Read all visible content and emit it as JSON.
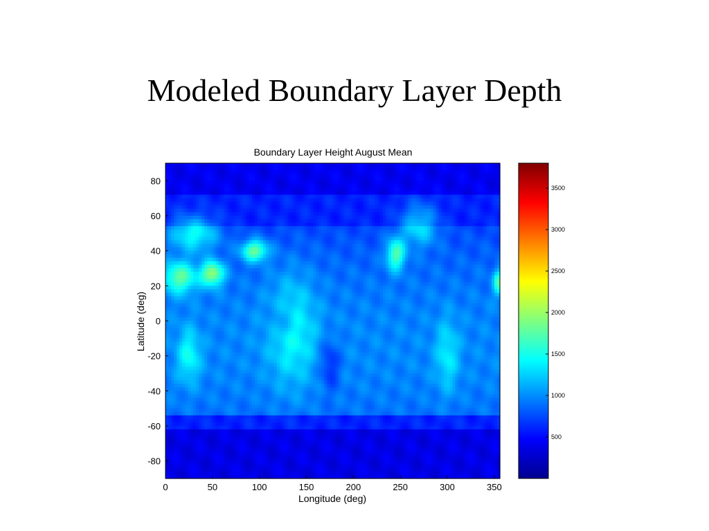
{
  "slide": {
    "title": "Modeled Boundary Layer Depth"
  },
  "chart_data": {
    "type": "heatmap",
    "title": "Boundary Layer Height August Mean",
    "xlabel": "Longitude (deg)",
    "ylabel": "Latitude (deg)",
    "xlim": [
      0,
      356
    ],
    "ylim": [
      -90,
      90
    ],
    "xticks": [
      0,
      50,
      100,
      150,
      200,
      250,
      300,
      350
    ],
    "yticks": [
      80,
      60,
      40,
      20,
      0,
      -20,
      -40,
      -60,
      -80
    ],
    "colorbar": {
      "range": [
        0,
        3800
      ],
      "ticks": [
        500,
        1000,
        1500,
        2000,
        2500,
        3000,
        3500
      ],
      "colormap": "jet"
    },
    "grid": false
  }
}
